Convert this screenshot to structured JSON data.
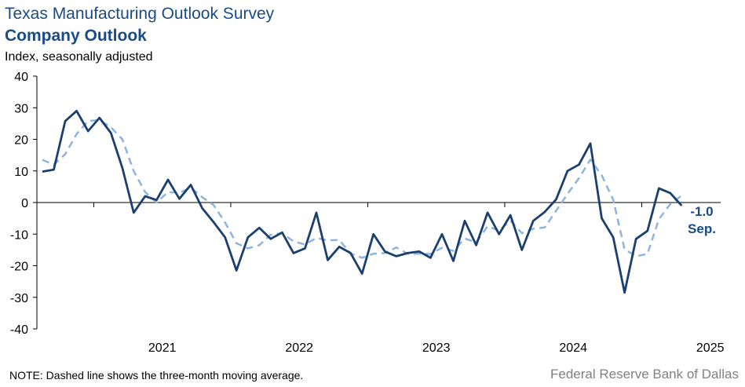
{
  "header": {
    "title": "Texas Manufacturing Outlook Survey",
    "subtitle": "Company Outlook",
    "units": "Index, seasonally adjusted"
  },
  "footer": {
    "note": "NOTE: Dashed line shows the three-month  moving average.",
    "source": "Federal Reserve Bank of Dallas"
  },
  "chart_data": {
    "type": "line",
    "title": "Company Outlook",
    "ylabel": "Index, seasonally adjusted",
    "ylim": [
      -40,
      40
    ],
    "yticks": [
      "40",
      "30",
      "20",
      "10",
      "0",
      "-10",
      "-20",
      "-30",
      "-40"
    ],
    "x_labels": [
      "2021",
      "2022",
      "2023",
      "2024",
      "2025"
    ],
    "x_start": "2020-08",
    "grid": false,
    "series": [
      {
        "style": "solid",
        "color": "#1b3f6e",
        "values": [
          9.8,
          10.4,
          25.8,
          29.0,
          22.6,
          26.8,
          22.0,
          11.0,
          -3.2,
          2.0,
          0.8,
          7.2,
          1.2,
          5.6,
          -1.8,
          -6.2,
          -11.0,
          -21.5,
          -11.0,
          -8.0,
          -11.5,
          -9.5,
          -16.0,
          -14.5,
          -3.2,
          -18.2,
          -14.0,
          -16.0,
          -22.5,
          -10.0,
          -15.5,
          -17.0,
          -16.0,
          -15.5,
          -17.5,
          -10.0,
          -18.5,
          -5.8,
          -13.5,
          -3.2,
          -10.0,
          -4.0,
          -15.0,
          -5.8,
          -3.0,
          1.0,
          10.0,
          12.0,
          18.7,
          -5.0,
          -11.0,
          -28.5,
          -11.5,
          -9.0,
          4.5,
          3.0,
          -1.0
        ]
      },
      {
        "style": "dashed",
        "color": "#8db4e2",
        "values": [
          13.5,
          12.0,
          15.3,
          21.7,
          25.8,
          26.1,
          23.8,
          20.0,
          10.0,
          3.3,
          0.0,
          3.3,
          3.1,
          4.7,
          1.7,
          -0.8,
          -6.3,
          -12.9,
          -14.5,
          -13.5,
          -10.2,
          -9.7,
          -12.3,
          -13.3,
          -11.2,
          -12.0,
          -11.8,
          -16.1,
          -17.5,
          -16.2,
          -16.0,
          -14.2,
          -16.2,
          -16.2,
          -16.3,
          -14.3,
          -15.3,
          -11.4,
          -12.6,
          -7.5,
          -8.9,
          -5.7,
          -9.7,
          -8.3,
          -7.9,
          -2.6,
          2.7,
          7.7,
          13.6,
          8.6,
          0.9,
          -14.8,
          -17.0,
          -16.3,
          -5.3,
          -0.5,
          2.2
        ]
      }
    ],
    "annotation": {
      "value": "-1.0",
      "month": "Sep."
    }
  }
}
